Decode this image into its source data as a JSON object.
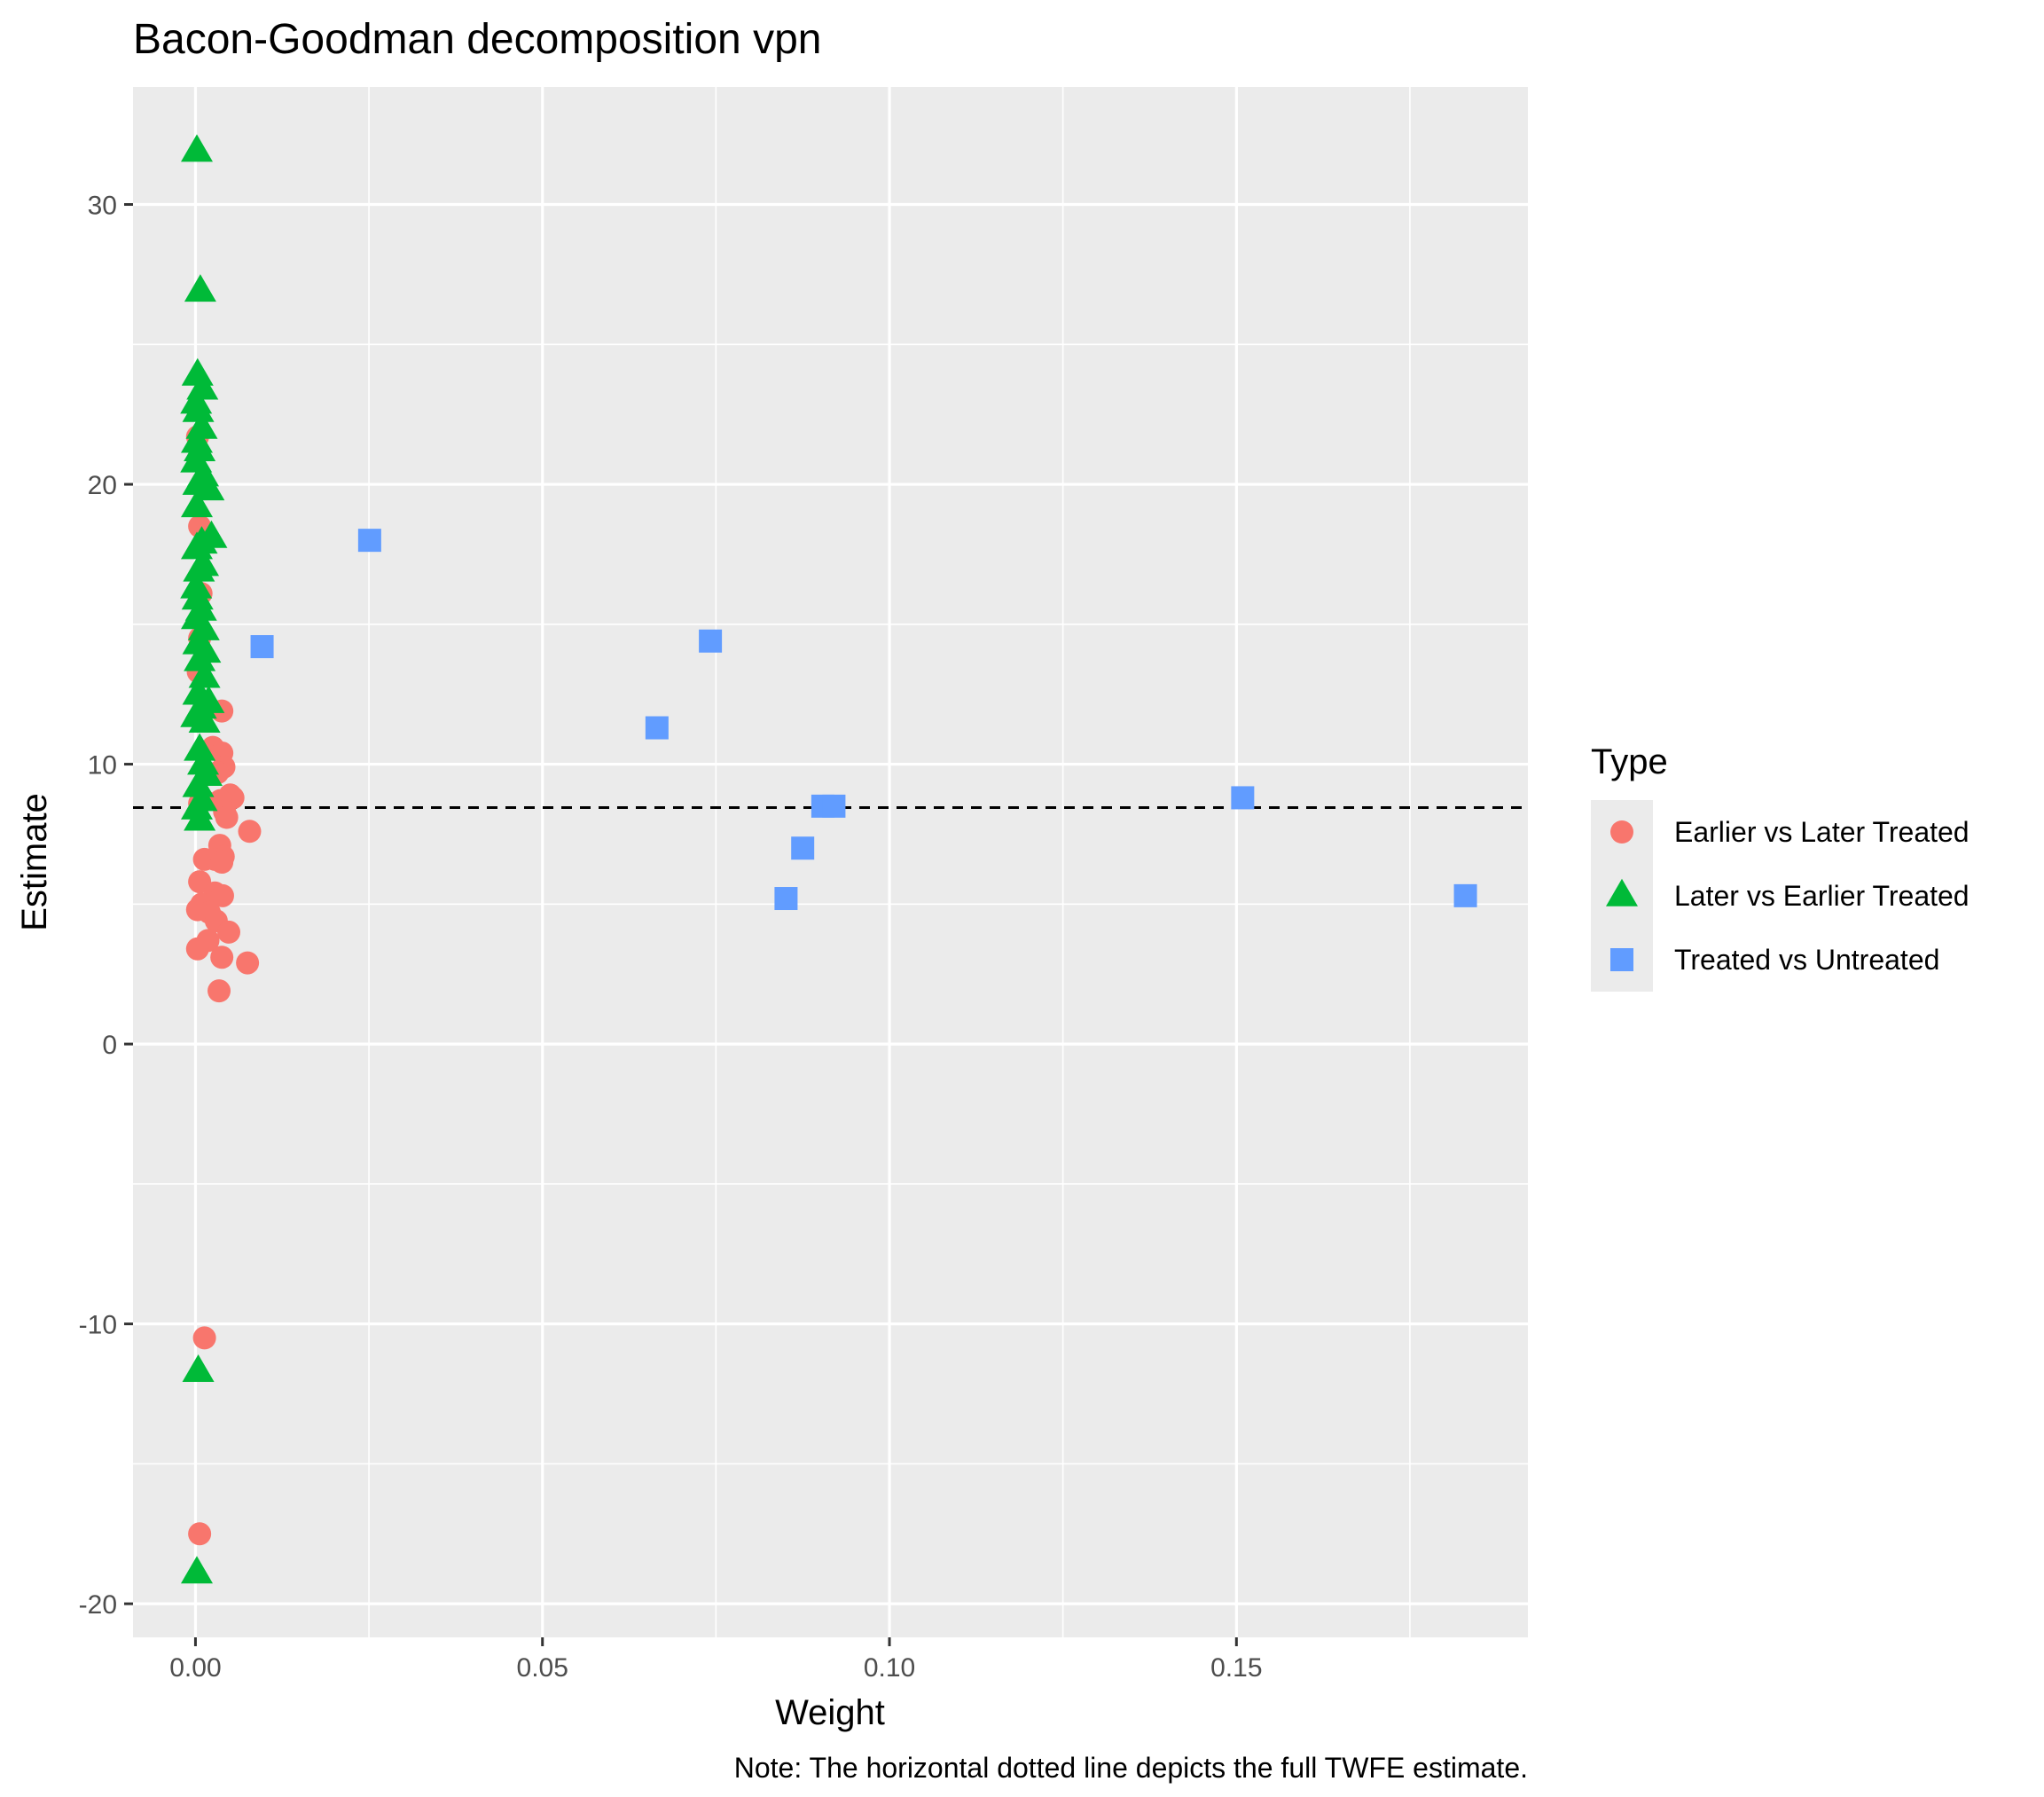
{
  "chart_data": {
    "type": "scatter",
    "title": "Bacon-Goodman decomposition vpn",
    "xlabel": "Weight",
    "ylabel": "Estimate",
    "caption": "Note: The horizontal dotted line depicts the full TWFE estimate.",
    "xlim": [
      -0.009,
      0.192
    ],
    "ylim": [
      -21.2,
      34.2
    ],
    "x_ticks": [
      0.0,
      0.05,
      0.1,
      0.15
    ],
    "x_tick_labels": [
      "0.00",
      "0.05",
      "0.10",
      "0.15"
    ],
    "y_ticks": [
      -20,
      -10,
      0,
      10,
      20,
      30
    ],
    "y_tick_labels": [
      "-20",
      "-10",
      "0",
      "10",
      "20",
      "30"
    ],
    "grid": true,
    "legend": {
      "title": "Type",
      "position": "right"
    },
    "hline": {
      "y": 8.45,
      "style": "dashed"
    },
    "series": [
      {
        "name": "Earlier vs Later Treated",
        "shape": "circle",
        "color": "#F8766D",
        "points": [
          [
            0.0003,
            21.7
          ],
          [
            0.0006,
            18.5
          ],
          [
            0.0008,
            16.1
          ],
          [
            0.0006,
            14.5
          ],
          [
            0.0004,
            13.3
          ],
          [
            0.0015,
            12.1
          ],
          [
            0.0038,
            11.9
          ],
          [
            0.0025,
            10.6
          ],
          [
            0.0038,
            10.4
          ],
          [
            0.0041,
            9.9
          ],
          [
            0.0032,
            9.7
          ],
          [
            0.005,
            8.9
          ],
          [
            0.0054,
            8.8
          ],
          [
            0.0036,
            8.7
          ],
          [
            0.0042,
            8.3
          ],
          [
            0.0012,
            8.7
          ],
          [
            0.0006,
            8.6
          ],
          [
            0.0045,
            8.1
          ],
          [
            0.0078,
            7.6
          ],
          [
            0.0035,
            7.1
          ],
          [
            0.004,
            6.7
          ],
          [
            0.0028,
            6.6
          ],
          [
            0.0013,
            6.6
          ],
          [
            0.0038,
            6.5
          ],
          [
            0.0006,
            5.8
          ],
          [
            0.0028,
            5.4
          ],
          [
            0.0039,
            5.3
          ],
          [
            0.0009,
            5.0
          ],
          [
            0.0003,
            4.8
          ],
          [
            0.002,
            4.7
          ],
          [
            0.003,
            4.4
          ],
          [
            0.0048,
            4.0
          ],
          [
            0.0018,
            3.7
          ],
          [
            0.0003,
            3.4
          ],
          [
            0.0038,
            3.1
          ],
          [
            0.0075,
            2.9
          ],
          [
            0.0034,
            1.9
          ],
          [
            0.0013,
            -10.5
          ],
          [
            0.0006,
            -17.5
          ]
        ]
      },
      {
        "name": "Later vs Earlier Treated",
        "shape": "triangle",
        "color": "#00BA38",
        "points": [
          [
            0.0002,
            31.9
          ],
          [
            0.0007,
            26.9
          ],
          [
            0.0003,
            23.9
          ],
          [
            0.001,
            23.4
          ],
          [
            0.0001,
            22.9
          ],
          [
            0.0004,
            22.6
          ],
          [
            0.0009,
            22.0
          ],
          [
            0.0002,
            21.5
          ],
          [
            0.0006,
            21.2
          ],
          [
            0.0001,
            20.8
          ],
          [
            0.0011,
            20.3
          ],
          [
            0.0004,
            20.0
          ],
          [
            0.0019,
            19.8
          ],
          [
            0.0002,
            19.2
          ],
          [
            0.0023,
            18.1
          ],
          [
            0.0009,
            17.9
          ],
          [
            0.0002,
            17.7
          ],
          [
            0.0011,
            17.1
          ],
          [
            0.0005,
            16.9
          ],
          [
            0.0001,
            16.3
          ],
          [
            0.0003,
            15.9
          ],
          [
            0.0008,
            15.5
          ],
          [
            0.0002,
            15.2
          ],
          [
            0.0012,
            14.8
          ],
          [
            0.0004,
            14.3
          ],
          [
            0.0014,
            14.0
          ],
          [
            0.0006,
            13.7
          ],
          [
            0.0013,
            13.1
          ],
          [
            0.0004,
            12.5
          ],
          [
            0.0019,
            12.2
          ],
          [
            0.0008,
            12.0
          ],
          [
            0.0001,
            11.7
          ],
          [
            0.0013,
            11.5
          ],
          [
            0.0006,
            10.5
          ],
          [
            0.0011,
            10.0
          ],
          [
            0.0016,
            9.6
          ],
          [
            0.0004,
            9.2
          ],
          [
            0.0009,
            8.7
          ],
          [
            0.0002,
            8.4
          ],
          [
            0.0006,
            8.0
          ],
          [
            0.0004,
            -11.7
          ],
          [
            0.0002,
            -18.9
          ]
        ]
      },
      {
        "name": "Treated vs Untreated",
        "shape": "square",
        "color": "#619CFF",
        "points": [
          [
            0.0251,
            18.0
          ],
          [
            0.0096,
            14.2
          ],
          [
            0.0742,
            14.4
          ],
          [
            0.0665,
            11.3
          ],
          [
            0.1509,
            8.8
          ],
          [
            0.0904,
            8.5
          ],
          [
            0.092,
            8.5
          ],
          [
            0.0875,
            7.0
          ],
          [
            0.0851,
            5.2
          ],
          [
            0.183,
            5.3
          ]
        ]
      }
    ]
  }
}
